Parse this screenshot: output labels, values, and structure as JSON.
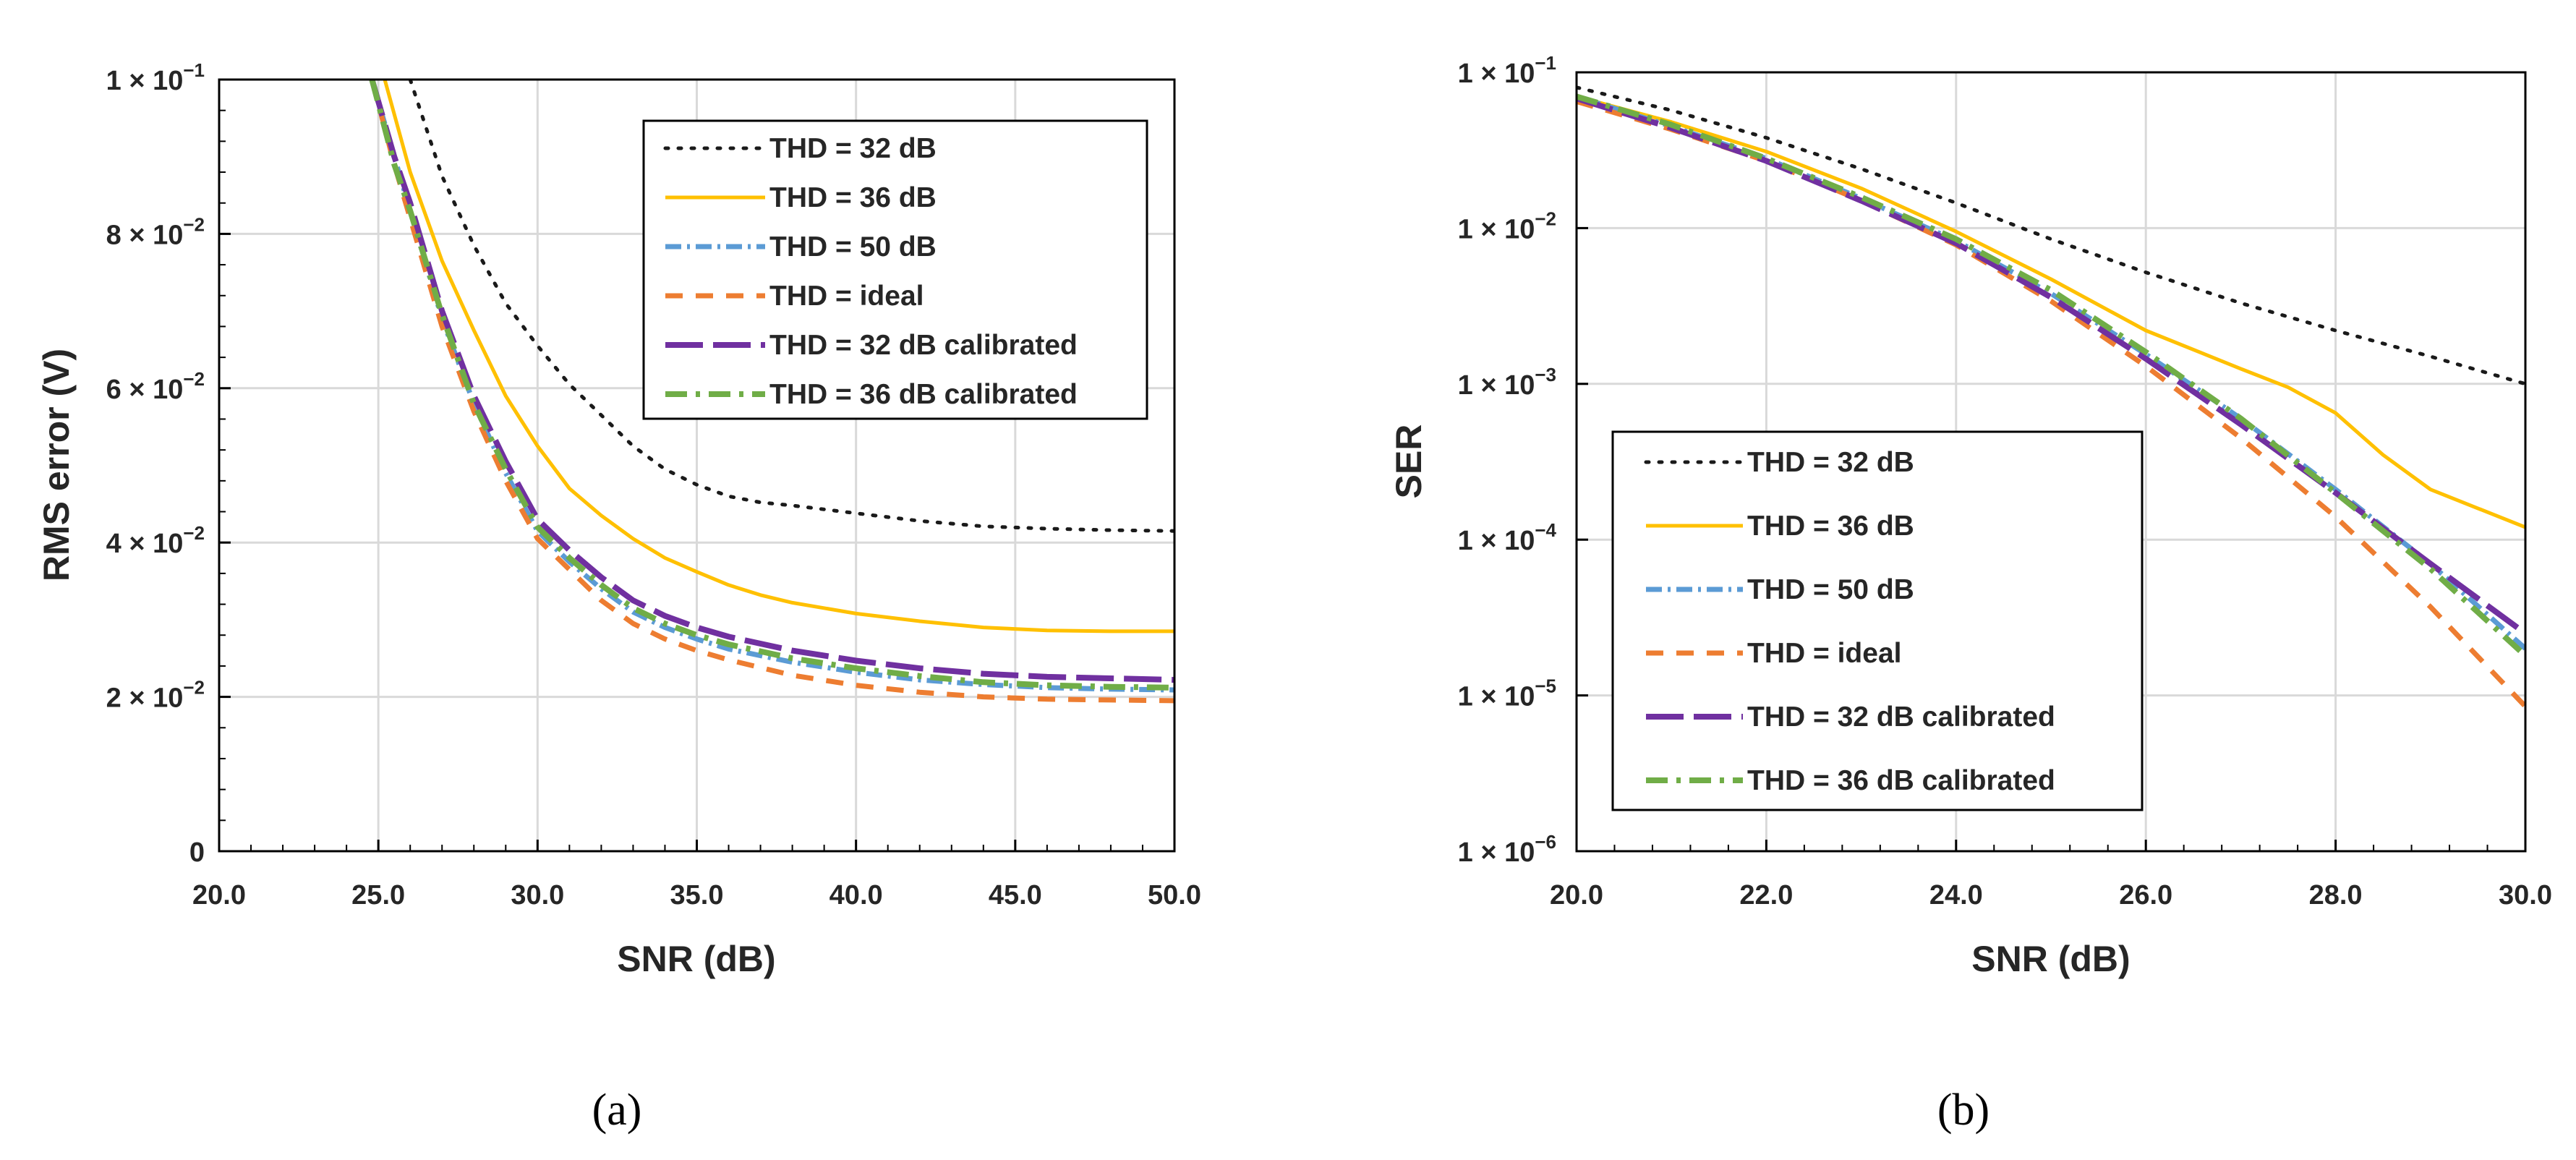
{
  "styles": {
    "THD = 32 dB": {
      "color": "#1a1a1a",
      "dash": "4 14",
      "width": 5,
      "cap": "round"
    },
    "THD = 36 dB": {
      "color": "#ffc000",
      "dash": "",
      "width": 5,
      "cap": "butt"
    },
    "THD = 50 dB": {
      "color": "#5b9bd5",
      "dash": "22 8 4 8",
      "width": 7,
      "cap": "butt"
    },
    "THD = ideal": {
      "color": "#ed7d31",
      "dash": "24 18",
      "width": 7,
      "cap": "butt"
    },
    "THD = 32 dB calibrated": {
      "color": "#7030a0",
      "dash": "52 14",
      "width": 8,
      "cap": "butt"
    },
    "THD = 36 dB calibrated": {
      "color": "#70ad47",
      "dash": "30 12 6 12",
      "width": 8,
      "cap": "butt"
    }
  },
  "chart_data": [
    {
      "panel_label": "(a)",
      "type": "line",
      "title": "",
      "xlabel": "SNR (dB)",
      "ylabel": "RMS error (V)",
      "xscale": "linear",
      "yscale": "linear",
      "xlim": [
        20,
        50
      ],
      "ylim": [
        0,
        0.1
      ],
      "grid": true,
      "legend_position": "top-right",
      "xticks": [
        20,
        25,
        30,
        35,
        40,
        45,
        50
      ],
      "xtick_labels": [
        "20.0",
        "25.0",
        "30.0",
        "35.0",
        "40.0",
        "45.0",
        "50.0"
      ],
      "yticks": [
        0,
        0.02,
        0.04,
        0.06,
        0.08,
        0.1
      ],
      "ytick_labels": [
        {
          "base": "0",
          "exp": ""
        },
        {
          "base": "2 × 10",
          "exp": "−2"
        },
        {
          "base": "4 × 10",
          "exp": "−2"
        },
        {
          "base": "6 × 10",
          "exp": "−2"
        },
        {
          "base": "8 × 10",
          "exp": "−2"
        },
        {
          "base": "1 × 10",
          "exp": "−1"
        }
      ],
      "series": [
        {
          "name": "THD = 32 dB",
          "x": [
            26,
            27,
            28,
            29,
            30,
            31,
            32,
            33,
            34,
            35,
            36,
            37,
            38,
            40,
            42,
            44,
            46,
            48,
            50
          ],
          "y": [
            0.1,
            0.0875,
            0.0785,
            0.071,
            0.0655,
            0.0605,
            0.0565,
            0.0525,
            0.0495,
            0.0475,
            0.046,
            0.0452,
            0.0448,
            0.0438,
            0.0428,
            0.0421,
            0.0418,
            0.0416,
            0.0415
          ]
        },
        {
          "name": "THD = 36 dB",
          "x": [
            25.2,
            26,
            27,
            28,
            29,
            30,
            31,
            32,
            33,
            34,
            35,
            36,
            37,
            38,
            40,
            42,
            44,
            46,
            48,
            50
          ],
          "y": [
            0.1,
            0.088,
            0.0765,
            0.0675,
            0.059,
            0.0525,
            0.047,
            0.0435,
            0.0405,
            0.038,
            0.0362,
            0.0345,
            0.0332,
            0.0322,
            0.0308,
            0.0298,
            0.029,
            0.0286,
            0.0285,
            0.0285
          ]
        },
        {
          "name": "THD = 50 dB",
          "x": [
            24.8,
            25.5,
            26,
            27,
            28,
            29,
            30,
            31,
            32,
            33,
            34,
            35,
            36,
            38,
            40,
            42,
            44,
            46,
            48,
            50
          ],
          "y": [
            0.1,
            0.09,
            0.083,
            0.069,
            0.058,
            0.049,
            0.0415,
            0.0375,
            0.034,
            0.031,
            0.029,
            0.0275,
            0.0262,
            0.0245,
            0.0232,
            0.0222,
            0.0216,
            0.0212,
            0.021,
            0.0209
          ]
        },
        {
          "name": "THD = ideal",
          "x": [
            24.8,
            25.5,
            26,
            27,
            28,
            29,
            30,
            31,
            32,
            33,
            34,
            35,
            36,
            38,
            40,
            42,
            44,
            46,
            48,
            50
          ],
          "y": [
            0.1,
            0.089,
            0.082,
            0.068,
            0.057,
            0.048,
            0.0405,
            0.0365,
            0.0325,
            0.0295,
            0.0275,
            0.026,
            0.0248,
            0.0228,
            0.0215,
            0.0206,
            0.02,
            0.0197,
            0.0196,
            0.0195
          ]
        },
        {
          "name": "THD = 32 dB calibrated",
          "x": [
            24.8,
            25.5,
            26,
            27,
            28,
            29,
            30,
            31,
            32,
            33,
            34,
            35,
            36,
            38,
            40,
            42,
            44,
            46,
            48,
            50
          ],
          "y": [
            0.1,
            0.09,
            0.084,
            0.07,
            0.059,
            0.0505,
            0.043,
            0.039,
            0.0355,
            0.0325,
            0.0305,
            0.029,
            0.0278,
            0.026,
            0.0247,
            0.0237,
            0.023,
            0.0226,
            0.0224,
            0.0222
          ]
        },
        {
          "name": "THD = 36 dB calibrated",
          "x": [
            24.8,
            25.5,
            26,
            27,
            28,
            29,
            30,
            31,
            32,
            33,
            34,
            35,
            36,
            38,
            40,
            42,
            44,
            46,
            48,
            50
          ],
          "y": [
            0.1,
            0.089,
            0.083,
            0.0695,
            0.058,
            0.0495,
            0.042,
            0.038,
            0.0345,
            0.0315,
            0.0295,
            0.028,
            0.0268,
            0.025,
            0.0237,
            0.0227,
            0.0219,
            0.0215,
            0.0213,
            0.0212
          ]
        }
      ]
    },
    {
      "panel_label": "(b)",
      "type": "line",
      "title": "",
      "xlabel": "SNR (dB)",
      "ylabel": "SER",
      "xscale": "linear",
      "yscale": "log",
      "xlim": [
        20,
        30
      ],
      "ylim": [
        1e-06,
        0.1
      ],
      "grid": true,
      "legend_position": "bottom-left",
      "xticks": [
        20,
        22,
        24,
        26,
        28,
        30
      ],
      "xtick_labels": [
        "20.0",
        "22.0",
        "24.0",
        "26.0",
        "28.0",
        "30.0"
      ],
      "yticks": [
        1e-06,
        1e-05,
        0.0001,
        0.001,
        0.01,
        0.1
      ],
      "ytick_labels": [
        {
          "base": "1 × 10",
          "exp": "−6"
        },
        {
          "base": "1 × 10",
          "exp": "−5"
        },
        {
          "base": "1 × 10",
          "exp": "−4"
        },
        {
          "base": "1 × 10",
          "exp": "−3"
        },
        {
          "base": "1 × 10",
          "exp": "−2"
        },
        {
          "base": "1 × 10",
          "exp": "−1"
        }
      ],
      "series": [
        {
          "name": "THD = 32 dB",
          "x": [
            20,
            21,
            22,
            23,
            24,
            25,
            26,
            27,
            28,
            29,
            30
          ],
          "y": [
            0.08,
            0.057,
            0.038,
            0.024,
            0.0145,
            0.0085,
            0.0052,
            0.0033,
            0.0022,
            0.0015,
            0.001
          ]
        },
        {
          "name": "THD = 36 dB",
          "x": [
            20,
            21,
            22,
            23,
            24,
            25,
            26,
            27,
            27.5,
            28,
            28.5,
            29,
            30
          ],
          "y": [
            0.07,
            0.048,
            0.031,
            0.018,
            0.0095,
            0.0047,
            0.0022,
            0.00125,
            0.00095,
            0.00065,
            0.00035,
            0.00021,
            0.00012
          ]
        },
        {
          "name": "THD = 50 dB",
          "x": [
            20,
            21,
            22,
            23,
            24,
            25,
            26,
            27,
            28,
            29,
            30
          ],
          "y": [
            0.07,
            0.045,
            0.028,
            0.0155,
            0.0083,
            0.0038,
            0.00155,
            0.0006,
            0.00021,
            7e-05,
            2e-05
          ]
        },
        {
          "name": "THD = ideal",
          "x": [
            20,
            21,
            22,
            23,
            24,
            25,
            26,
            27,
            28,
            29,
            30
          ],
          "y": [
            0.065,
            0.043,
            0.027,
            0.015,
            0.0078,
            0.0034,
            0.0013,
            0.00045,
            0.00014,
            3.7e-05,
            8.5e-06
          ]
        },
        {
          "name": "THD = 32 dB calibrated",
          "x": [
            20,
            21,
            22,
            23,
            24,
            25,
            26,
            27,
            28,
            29,
            30
          ],
          "y": [
            0.068,
            0.044,
            0.027,
            0.015,
            0.008,
            0.0036,
            0.00145,
            0.00055,
            0.0002,
            7e-05,
            2.5e-05
          ]
        },
        {
          "name": "THD = 36 dB calibrated",
          "x": [
            20,
            21,
            22,
            23,
            24,
            25,
            26,
            27,
            28,
            29,
            30
          ],
          "y": [
            0.07,
            0.046,
            0.028,
            0.0158,
            0.0085,
            0.004,
            0.0016,
            0.0006,
            0.0002,
            6.5e-05,
            1.8e-05
          ]
        }
      ]
    }
  ]
}
